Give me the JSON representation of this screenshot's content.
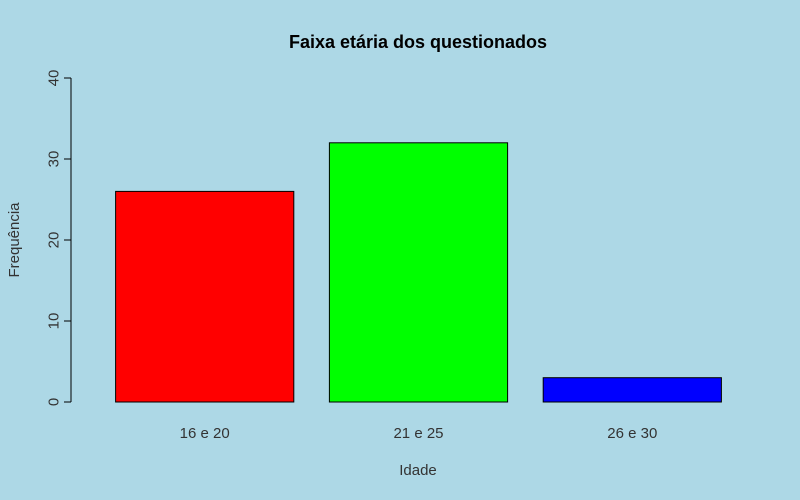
{
  "chart_data": {
    "type": "bar",
    "title": "Faixa etária dos questionados",
    "xlabel": "Idade",
    "ylabel": "Frequência",
    "categories": [
      "16 e 20",
      "21 e 25",
      "26 e 30"
    ],
    "values": [
      26,
      32,
      3
    ],
    "bar_colors": [
      "#ff0000",
      "#00ff00",
      "#0000ff"
    ],
    "ylim": [
      0,
      40
    ],
    "yticks": [
      0,
      10,
      20,
      30,
      40
    ],
    "grid": false,
    "legend": "none",
    "background_color": "#add8e6"
  }
}
